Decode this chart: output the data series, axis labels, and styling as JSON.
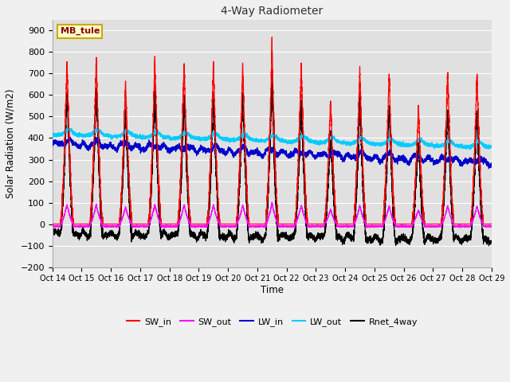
{
  "title": "4-Way Radiometer",
  "xlabel": "Time",
  "ylabel": "Solar Radiation (W/m2)",
  "ylim": [
    -200,
    950
  ],
  "yticks": [
    -200,
    -100,
    0,
    100,
    200,
    300,
    400,
    500,
    600,
    700,
    800,
    900
  ],
  "xlim": [
    0,
    15
  ],
  "xtick_labels": [
    "Oct 14",
    "Oct 15",
    "Oct 16",
    "Oct 17",
    "Oct 18",
    "Oct 19",
    "Oct 20",
    "Oct 21",
    "Oct 22",
    "Oct 23",
    "Oct 24",
    "Oct 25",
    "Oct 26",
    "Oct 27",
    "Oct 28",
    "Oct 29"
  ],
  "colors": {
    "SW_in": "#ff0000",
    "SW_out": "#ff00ff",
    "LW_in": "#0000cc",
    "LW_out": "#00ccff",
    "Rnet_4way": "#000000"
  },
  "legend_labels": [
    "SW_in",
    "SW_out",
    "LW_in",
    "LW_out",
    "Rnet_4way"
  ],
  "station_label": "MB_tule",
  "plot_bg": "#e0e0e0",
  "fig_bg": "#f0f0f0",
  "grid_color": "#ffffff",
  "sw_in_peaks": [
    760,
    760,
    665,
    760,
    748,
    742,
    740,
    820,
    740,
    580,
    720,
    700,
    545,
    715,
    700
  ],
  "n_days": 15,
  "n_pts_per_day": 480
}
